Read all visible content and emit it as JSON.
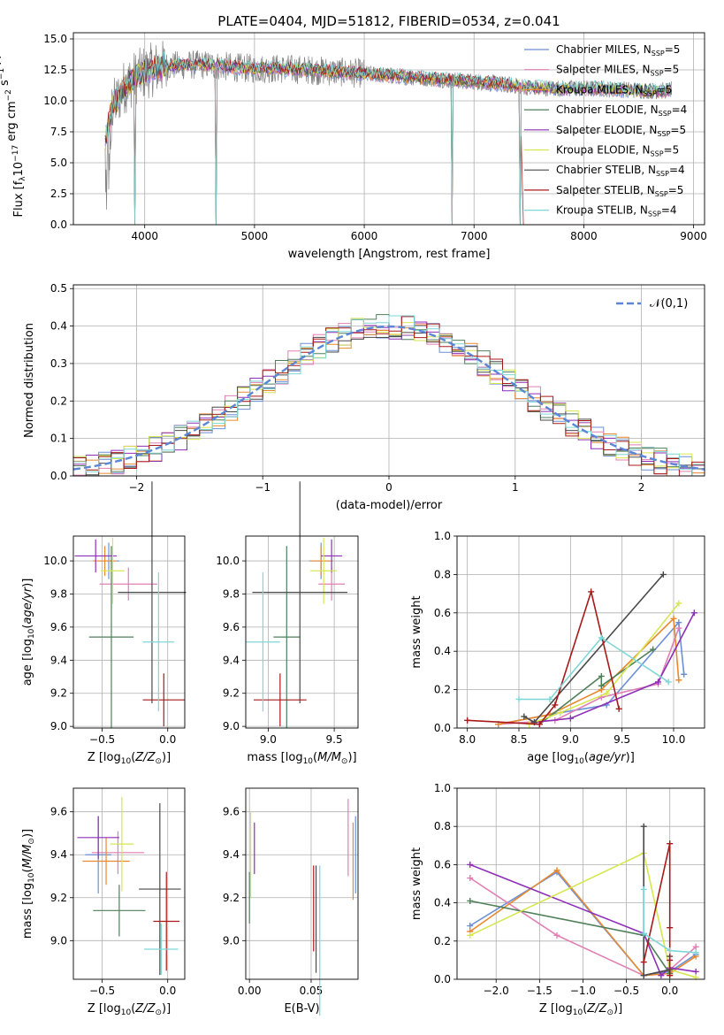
{
  "figure_title": "PLATE=0404, MJD=51812, FIBERID=0534, z=0.041",
  "series_colors": [
    "#6b8fd6",
    "#e07fb4",
    "#e8892f",
    "#4f7f59",
    "#8e2fb8",
    "#d6e651",
    "#4a4a4a",
    "#a81a1a",
    "#7fd6d6"
  ],
  "chart_data": [
    {
      "type": "line",
      "title": "PLATE=0404, MJD=51812, FIBERID=0534, z=0.041",
      "xlabel": "wavelength [Angstrom, rest frame]",
      "ylabel": "Flux [fλ10⁻¹⁷ erg cm⁻² s⁻¹ A⁻¹]",
      "xlim": [
        3350,
        9100
      ],
      "ylim": [
        0,
        15.5
      ],
      "xticks": [
        4000,
        5000,
        6000,
        7000,
        8000,
        9000
      ],
      "yticks": [
        0.0,
        2.5,
        5.0,
        7.5,
        10.0,
        12.5,
        15.0
      ],
      "legend_position": "right",
      "legend": [
        "Chabrier MILES, N_SSP=5",
        "Salpeter MILES, N_SSP=5",
        "Kroupa MILES, N_SSP=5",
        "Chabrier ELODIE, N_SSP=4",
        "Salpeter ELODIE, N_SSP=5",
        "Kroupa ELODIE, N_SSP=5",
        "Chabrier STELIB, N_SSP=4",
        "Salpeter STELIB, N_SSP=5",
        "Kroupa STELIB, N_SSP=4"
      ],
      "legend_display": [
        {
          "main": "Chabrier MILES, N",
          "sub": "SSP",
          "tail": "=5"
        },
        {
          "main": "Salpeter MILES, N",
          "sub": "SSP",
          "tail": "=5"
        },
        {
          "main": "Kroupa MILES, N",
          "sub": "SSP",
          "tail": "=5"
        },
        {
          "main": "Chabrier ELODIE, N",
          "sub": "SSP",
          "tail": "=4"
        },
        {
          "main": "Salpeter ELODIE, N",
          "sub": "SSP",
          "tail": "=5"
        },
        {
          "main": "Kroupa ELODIE, N",
          "sub": "SSP",
          "tail": "=5"
        },
        {
          "main": "Chabrier STELIB, N",
          "sub": "SSP",
          "tail": "=4"
        },
        {
          "main": "Salpeter STELIB, N",
          "sub": "SSP",
          "tail": "=5"
        },
        {
          "main": "Kroupa STELIB, N",
          "sub": "SSP",
          "tail": "=4"
        }
      ],
      "data_continuum": {
        "x": [
          3650,
          3700,
          3750,
          3800,
          3900,
          4000,
          4100,
          4200,
          4400,
          4600,
          4800,
          5000,
          5200,
          5500,
          5800,
          6000,
          6300,
          6600,
          6900,
          7200,
          7500,
          7800,
          8100,
          8400,
          8700,
          8800
        ],
        "y": [
          7.0,
          9.5,
          10.0,
          11.0,
          11.8,
          12.3,
          12.6,
          12.8,
          12.9,
          12.9,
          12.7,
          12.6,
          12.6,
          12.5,
          12.3,
          12.2,
          12.0,
          11.8,
          11.6,
          11.4,
          11.1,
          11.0,
          11.0,
          10.9,
          10.8,
          10.9
        ]
      },
      "model_drops_x": [
        3910,
        4650,
        6800,
        7420
      ]
    },
    {
      "type": "histogram",
      "xlabel": "(data-model)/error",
      "ylabel": "Normed distribution",
      "xlim": [
        -2.5,
        2.5
      ],
      "ylim": [
        0,
        0.51
      ],
      "xticks": [
        -2,
        -1,
        0,
        1,
        2
      ],
      "yticks": [
        0.0,
        0.1,
        0.2,
        0.3,
        0.4,
        0.5
      ],
      "bin_width": 0.1,
      "legend": [
        "𝒩(0,1)"
      ],
      "legend_position": "top-right",
      "reference_curve": "normal(0,1)"
    },
    {
      "type": "errorbar",
      "xlabel": "Z [log₁₀(Z/Z⊙)]",
      "ylabel": "age  [log₁₀(age/yr)]",
      "xlim": [
        -0.72,
        0.13
      ],
      "ylim": [
        8.99,
        10.15
      ],
      "xticks": [
        -0.5,
        0.0
      ],
      "yticks": [
        9.0,
        9.2,
        9.4,
        9.6,
        9.8,
        10.0
      ],
      "points": [
        {
          "x": -0.45,
          "y": 10.0,
          "xerr": 0.08,
          "yerr": 0.11,
          "c": 0
        },
        {
          "x": -0.3,
          "y": 9.86,
          "xerr": 0.22,
          "yerr": 0.1,
          "c": 1
        },
        {
          "x": -0.48,
          "y": 10.0,
          "xerr": 0.09,
          "yerr": 0.09,
          "c": 2
        },
        {
          "x": -0.43,
          "y": 9.54,
          "xerr": 0.17,
          "yerr": 0.55,
          "c": 3
        },
        {
          "x": -0.55,
          "y": 10.03,
          "xerr": 0.16,
          "yerr": 0.1,
          "c": 4
        },
        {
          "x": -0.42,
          "y": 9.94,
          "xerr": 0.09,
          "yerr": 0.2,
          "c": 5
        },
        {
          "x": -0.12,
          "y": 9.81,
          "xerr": 0.26,
          "yerr": 0.67,
          "c": 6
        },
        {
          "x": -0.03,
          "y": 9.16,
          "xerr": 0.16,
          "yerr": 0.16,
          "c": 7
        },
        {
          "x": -0.07,
          "y": 9.51,
          "xerr": 0.12,
          "yerr": 0.42,
          "c": 8
        }
      ]
    },
    {
      "type": "errorbar",
      "xlabel": "mass [log₁₀(M/M⊙)]",
      "ylabel": "",
      "xlim": [
        8.83,
        9.68
      ],
      "ylim": [
        8.99,
        10.15
      ],
      "xticks": [
        9.0,
        9.5
      ],
      "yticks": [
        9.0,
        9.2,
        9.4,
        9.6,
        9.8,
        10.0
      ],
      "points": [
        {
          "x": 9.4,
          "y": 10.0,
          "xerr": 0.09,
          "yerr": 0.11,
          "c": 0
        },
        {
          "x": 9.48,
          "y": 9.86,
          "xerr": 0.1,
          "yerr": 0.1,
          "c": 1
        },
        {
          "x": 9.4,
          "y": 10.0,
          "xerr": 0.08,
          "yerr": 0.09,
          "c": 2
        },
        {
          "x": 9.14,
          "y": 9.54,
          "xerr": 0.1,
          "yerr": 0.55,
          "c": 3
        },
        {
          "x": 9.48,
          "y": 10.03,
          "xerr": 0.08,
          "yerr": 0.1,
          "c": 4
        },
        {
          "x": 9.42,
          "y": 9.94,
          "xerr": 0.1,
          "yerr": 0.2,
          "c": 5
        },
        {
          "x": 9.24,
          "y": 9.81,
          "xerr": 0.36,
          "yerr": 0.67,
          "c": 6
        },
        {
          "x": 9.09,
          "y": 9.16,
          "xerr": 0.2,
          "yerr": 0.16,
          "c": 7
        },
        {
          "x": 8.96,
          "y": 9.51,
          "xerr": 0.13,
          "yerr": 0.42,
          "c": 8
        }
      ]
    },
    {
      "type": "line",
      "xlabel": "age  [log₁₀(age/yr)]",
      "ylabel": "mass weight",
      "xlim": [
        7.9,
        10.3
      ],
      "ylim": [
        0,
        1.0
      ],
      "xticks": [
        8.0,
        8.5,
        9.0,
        9.5,
        10.0
      ],
      "yticks": [
        0.0,
        0.2,
        0.4,
        0.6,
        0.8,
        1.0
      ],
      "series": [
        {
          "c": 0,
          "x": [
            8.3,
            8.9,
            9.35,
            10.05,
            10.1
          ],
          "y": [
            0.02,
            0.08,
            0.12,
            0.55,
            0.28
          ]
        },
        {
          "c": 1,
          "x": [
            8.3,
            8.85,
            9.3,
            9.85,
            10.05
          ],
          "y": [
            0.02,
            0.04,
            0.16,
            0.23,
            0.52
          ]
        },
        {
          "c": 2,
          "x": [
            8.3,
            8.8,
            9.3,
            10.0,
            10.05
          ],
          "y": [
            0.02,
            0.07,
            0.2,
            0.57,
            0.25
          ]
        },
        {
          "c": 3,
          "x": [
            8.7,
            9.3,
            9.3,
            9.8
          ],
          "y": [
            0.02,
            0.27,
            0.22,
            0.41
          ]
        },
        {
          "c": 4,
          "x": [
            8.65,
            9.0,
            9.85,
            10.2
          ],
          "y": [
            0.03,
            0.05,
            0.24,
            0.6
          ]
        },
        {
          "c": 5,
          "x": [
            8.6,
            8.9,
            9.35,
            10.05
          ],
          "y": [
            0.02,
            0.08,
            0.18,
            0.65
          ]
        },
        {
          "c": 6,
          "x": [
            8.55,
            8.65,
            9.9
          ],
          "y": [
            0.06,
            0.03,
            0.8
          ]
        },
        {
          "c": 7,
          "x": [
            8.0,
            8.7,
            8.85,
            9.2,
            9.47
          ],
          "y": [
            0.04,
            0.02,
            0.12,
            0.71,
            0.1
          ]
        },
        {
          "c": 8,
          "x": [
            8.5,
            8.8,
            9.3,
            9.95
          ],
          "y": [
            0.15,
            0.15,
            0.47,
            0.24
          ]
        }
      ]
    },
    {
      "type": "errorbar",
      "xlabel": "Z [log₁₀(Z/Z⊙)]",
      "ylabel": "mass [log₁₀(M/M⊙)]",
      "xlim": [
        -0.72,
        0.13
      ],
      "ylim": [
        8.82,
        9.71
      ],
      "xticks": [
        -0.5,
        0.0
      ],
      "yticks": [
        9.0,
        9.2,
        9.4,
        9.6
      ],
      "points": [
        {
          "x": -0.53,
          "y": 9.4,
          "xerr": 0.1,
          "yerr": 0.18,
          "c": 0
        },
        {
          "x": -0.38,
          "y": 9.41,
          "xerr": 0.2,
          "yerr": 0.1,
          "c": 1
        },
        {
          "x": -0.47,
          "y": 9.37,
          "xerr": 0.18,
          "yerr": 0.11,
          "c": 2
        },
        {
          "x": -0.37,
          "y": 9.14,
          "xerr": 0.2,
          "yerr": 0.12,
          "c": 3
        },
        {
          "x": -0.53,
          "y": 9.48,
          "xerr": 0.16,
          "yerr": 0.1,
          "c": 4
        },
        {
          "x": -0.35,
          "y": 9.45,
          "xerr": 0.09,
          "yerr": 0.22,
          "c": 5
        },
        {
          "x": -0.06,
          "y": 9.24,
          "xerr": 0.16,
          "yerr": 0.4,
          "c": 6
        },
        {
          "x": -0.01,
          "y": 9.09,
          "xerr": 0.1,
          "yerr": 0.23,
          "c": 7
        },
        {
          "x": -0.05,
          "y": 8.96,
          "xerr": 0.13,
          "yerr": 0.12,
          "c": 8
        }
      ]
    },
    {
      "type": "errorbar",
      "xlabel": "E(B-V)",
      "ylabel": "",
      "xlim": [
        -0.003,
        0.088
      ],
      "ylim": [
        8.82,
        9.71
      ],
      "xticks": [
        0.0,
        0.05
      ],
      "yticks": [
        9.0,
        9.2,
        9.4,
        9.6
      ],
      "points": [
        {
          "x": 0.086,
          "y": 9.4,
          "xerr": 0,
          "yerr": 0.18,
          "c": 0
        },
        {
          "x": 0.08,
          "y": 9.48,
          "xerr": 0,
          "yerr": 0.18,
          "c": 1
        },
        {
          "x": 0.084,
          "y": 9.37,
          "xerr": 0,
          "yerr": 0.18,
          "c": 2
        },
        {
          "x": 0.0,
          "y": 9.2,
          "xerr": 0,
          "yerr": 0.12,
          "c": 3
        },
        {
          "x": 0.004,
          "y": 9.43,
          "xerr": 0,
          "yerr": 0.12,
          "c": 4
        },
        {
          "x": 0.001,
          "y": 9.4,
          "xerr": 0,
          "yerr": 0.2,
          "c": 5
        },
        {
          "x": 0.054,
          "y": 9.1,
          "xerr": 0,
          "yerr": 0.25,
          "c": 6
        },
        {
          "x": 0.052,
          "y": 9.15,
          "xerr": 0,
          "yerr": 0.2,
          "c": 7
        },
        {
          "x": 0.057,
          "y": 9.0,
          "xerr": 0,
          "yerr": 0.35,
          "c": 8
        }
      ]
    },
    {
      "type": "line",
      "xlabel": "Z [log₁₀(Z/Z⊙)]",
      "ylabel": "mass weight",
      "xlim": [
        -2.45,
        0.4
      ],
      "ylim": [
        0,
        1.0
      ],
      "xticks": [
        -2.0,
        -1.5,
        -1.0,
        -0.5,
        0.0
      ],
      "yticks": [
        0.0,
        0.2,
        0.4,
        0.6,
        0.8,
        1.0
      ],
      "series": [
        {
          "c": 0,
          "x": [
            -2.3,
            -1.3,
            -0.3,
            0.0,
            0.3
          ],
          "y": [
            0.28,
            0.56,
            0.02,
            0.04,
            0.13
          ]
        },
        {
          "c": 1,
          "x": [
            -2.3,
            -1.3,
            -0.3,
            0.0,
            0.3
          ],
          "y": [
            0.53,
            0.23,
            0.02,
            0.05,
            0.17
          ]
        },
        {
          "c": 2,
          "x": [
            -2.3,
            -1.3,
            -0.3,
            0.0,
            0.3
          ],
          "y": [
            0.25,
            0.57,
            0.02,
            0.03,
            0.12
          ]
        },
        {
          "c": 3,
          "x": [
            -2.3,
            -0.3,
            0.0
          ],
          "y": [
            0.41,
            0.23,
            0.03
          ]
        },
        {
          "c": 4,
          "x": [
            -2.3,
            -0.3,
            -0.1,
            0.0,
            0.3
          ],
          "y": [
            0.6,
            0.24,
            0.02,
            0.06,
            0.04
          ]
        },
        {
          "c": 5,
          "x": [
            -2.3,
            -0.3,
            0.0,
            0.3
          ],
          "y": [
            0.23,
            0.66,
            0.05,
            0.01
          ]
        },
        {
          "c": 6,
          "x": [
            -0.3,
            -0.3,
            0.0,
            0.0
          ],
          "y": [
            0.8,
            0.02,
            0.05,
            0.12
          ]
        },
        {
          "c": 7,
          "x": [
            -0.3,
            0.0,
            0.0,
            0.0,
            0.0
          ],
          "y": [
            0.09,
            0.71,
            0.27,
            0.02,
            0.1
          ]
        },
        {
          "c": 8,
          "x": [
            -0.3,
            -0.3,
            0.0,
            0.3
          ],
          "y": [
            0.47,
            0.24,
            0.15,
            0.14
          ]
        }
      ]
    }
  ]
}
